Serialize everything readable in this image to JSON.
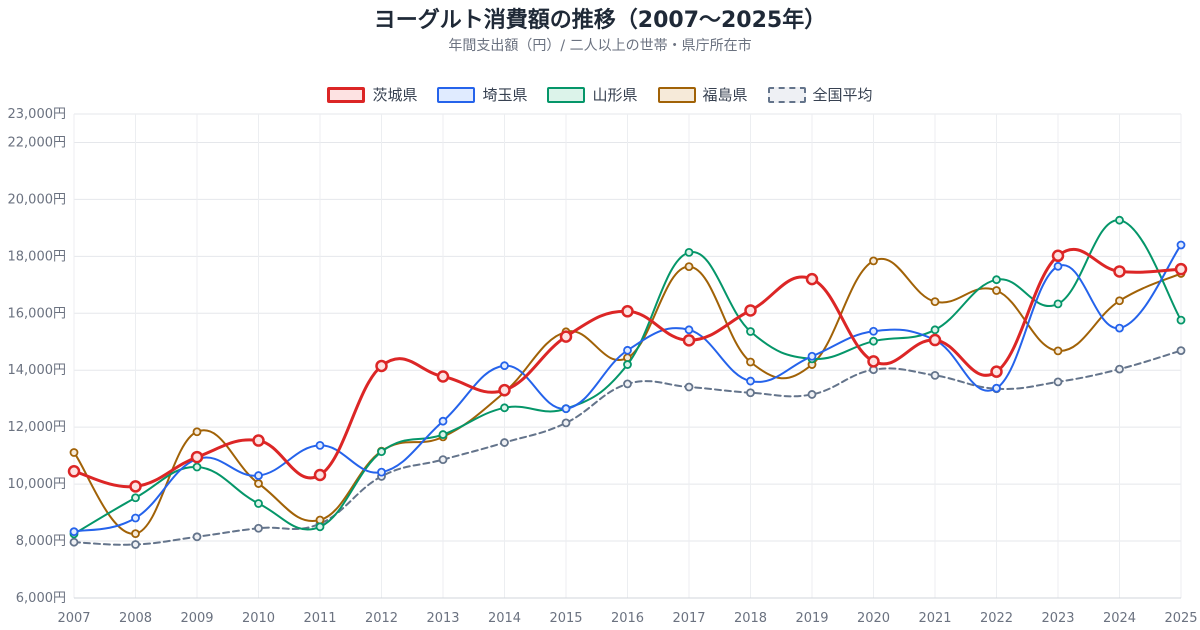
{
  "chart_data": {
    "type": "line",
    "title": "ヨーグルト消費額の推移（2007〜2025年）",
    "subtitle": "年間支出額（円）/ 二人以上の世帯・県庁所在市",
    "xlabel": "",
    "ylabel": "",
    "x": [
      "2007",
      "2008",
      "2009",
      "2010",
      "2011",
      "2012",
      "2013",
      "2014",
      "2015",
      "2016",
      "2017",
      "2018",
      "2019",
      "2020",
      "2021",
      "2022",
      "2023",
      "2024",
      "2025"
    ],
    "ylim": [
      6000,
      23000
    ],
    "yticks": [
      6000,
      8000,
      10000,
      12000,
      14000,
      16000,
      18000,
      20000,
      22000,
      23000
    ],
    "ytick_labels": [
      "6,000円",
      "8,000円",
      "10,000円",
      "12,000円",
      "14,000円",
      "16,000円",
      "18,000円",
      "20,000円",
      "22,000円",
      "23,000円"
    ],
    "grid": true,
    "legend_position": "top",
    "series": [
      {
        "name": "茨城県",
        "color": "#dc2626",
        "fill": "#fde2e2",
        "dashed": false,
        "width": 3,
        "marker": 5,
        "values": [
          10450,
          9920,
          10950,
          11530,
          10320,
          14150,
          13780,
          13300,
          15180,
          16070,
          15050,
          16100,
          17200,
          14310,
          15060,
          13950,
          18020,
          17470,
          17550
        ]
      },
      {
        "name": "埼玉県",
        "color": "#2563eb",
        "fill": "#e0ebff",
        "dashed": false,
        "width": 2,
        "marker": 3.5,
        "values": [
          8330,
          8810,
          10880,
          10300,
          11360,
          10420,
          12210,
          14160,
          12650,
          14700,
          15420,
          13620,
          14490,
          15370,
          15060,
          13370,
          17650,
          15480,
          18400
        ]
      },
      {
        "name": "山形県",
        "color": "#059669",
        "fill": "#dcf3ea",
        "dashed": false,
        "width": 2,
        "marker": 3.5,
        "values": [
          8250,
          9520,
          10600,
          9320,
          8500,
          11140,
          11740,
          12680,
          12650,
          14200,
          18140,
          15360,
          14400,
          15020,
          15420,
          17180,
          16330,
          19270,
          15760
        ]
      },
      {
        "name": "福島県",
        "color": "#a16207",
        "fill": "#f6ead9",
        "dashed": false,
        "width": 2,
        "marker": 3.5,
        "values": [
          11110,
          8260,
          11840,
          10020,
          8740,
          11160,
          11660,
          13230,
          15350,
          14440,
          17640,
          14290,
          14200,
          17840,
          16410,
          16800,
          14680,
          16440,
          17400
        ]
      },
      {
        "name": "全国平均",
        "color": "#64748b",
        "fill": "#eef0f4",
        "dashed": true,
        "width": 2,
        "marker": 3.5,
        "values": [
          7960,
          7880,
          8150,
          8450,
          8610,
          10270,
          10860,
          11460,
          12150,
          13520,
          13410,
          13210,
          13150,
          14020,
          13820,
          13350,
          13590,
          14040,
          14690
        ]
      }
    ]
  }
}
